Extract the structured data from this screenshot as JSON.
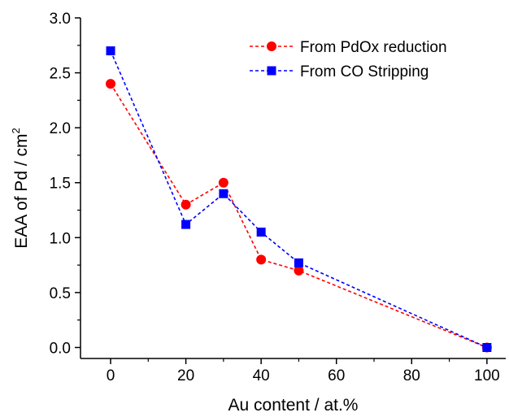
{
  "chart_data": {
    "type": "line",
    "xlabel": "Au content / at.%",
    "ylabel": "EAA of Pd  / cm",
    "ylabel_superscript": "2",
    "xlim": [
      -8,
      105
    ],
    "ylim": [
      -0.1,
      3.0
    ],
    "x_ticks": [
      0,
      20,
      40,
      60,
      80,
      100
    ],
    "y_ticks": [
      0.0,
      0.5,
      1.0,
      1.5,
      2.0,
      2.5,
      3.0
    ],
    "x_tick_labels": [
      "0",
      "20",
      "40",
      "60",
      "80",
      "100"
    ],
    "y_tick_labels": [
      "0.0",
      "0.5",
      "1.0",
      "1.5",
      "2.0",
      "2.5",
      "3.0"
    ],
    "grid": false,
    "legend_position": "top-right",
    "line_style": "dashed",
    "series": [
      {
        "name": "From PdOx reduction",
        "color": "#ff0000",
        "marker": "circle",
        "x": [
          0,
          20,
          30,
          40,
          50,
          100
        ],
        "y": [
          2.4,
          1.3,
          1.5,
          0.8,
          0.7,
          0.0
        ]
      },
      {
        "name": "From CO Stripping",
        "color": "#0000ff",
        "marker": "square",
        "x": [
          0,
          20,
          30,
          40,
          50,
          100
        ],
        "y": [
          2.7,
          1.12,
          1.4,
          1.05,
          0.77,
          0.0
        ]
      }
    ]
  }
}
